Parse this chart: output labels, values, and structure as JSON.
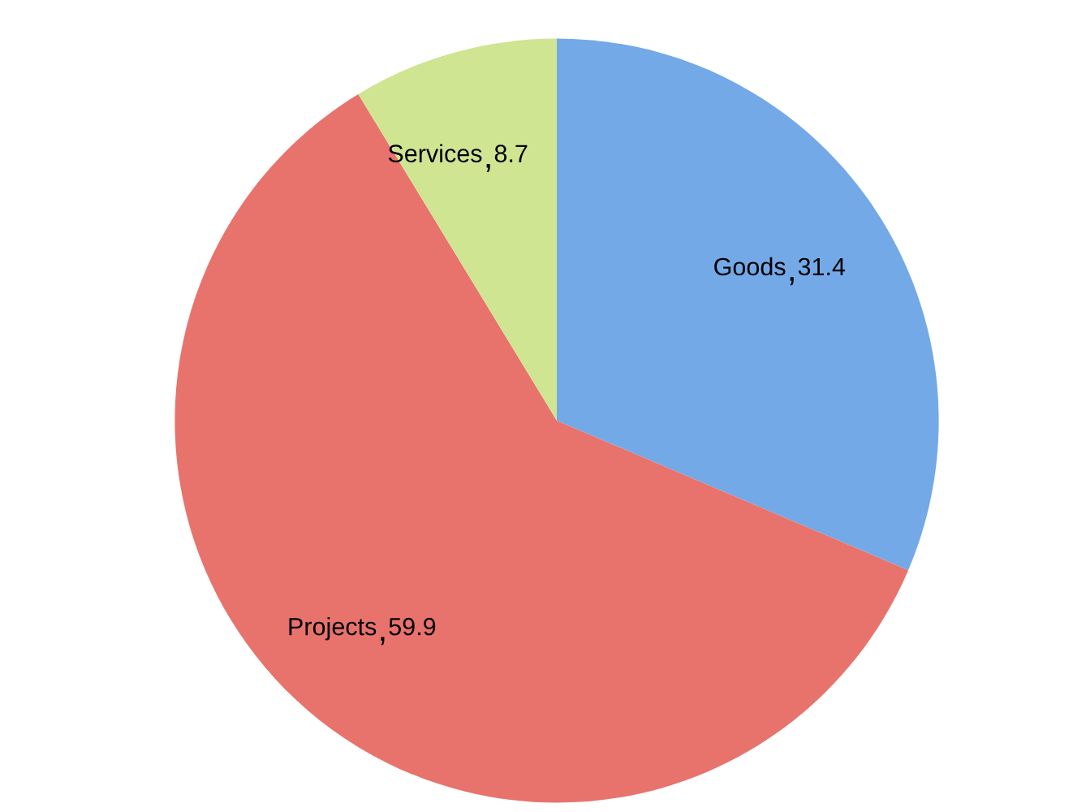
{
  "chart_data": {
    "type": "pie",
    "categories": [
      "Goods",
      "Projects",
      "Services"
    ],
    "values": [
      31.4,
      59.9,
      8.7
    ],
    "colors": [
      "#74a9e8",
      "#e8736c",
      "#cfe592"
    ],
    "data_labels": true,
    "legend": false
  }
}
